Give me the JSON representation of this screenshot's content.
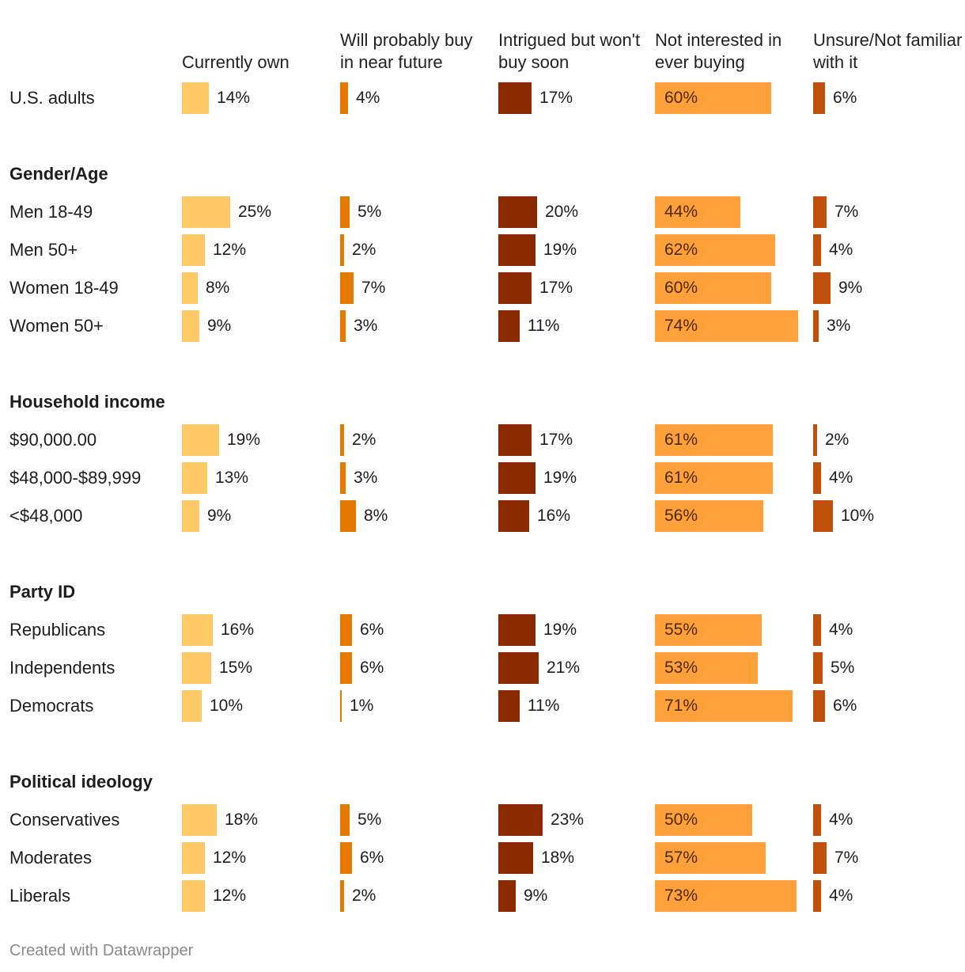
{
  "chart_data": {
    "type": "bar",
    "title": "",
    "columns": [
      {
        "label": "Currently own",
        "color": "#ffc966"
      },
      {
        "label": "Will probably buy in near future",
        "color": "#e67a00"
      },
      {
        "label": "Intrigued but won't buy soon",
        "color": "#8b2a00"
      },
      {
        "label": "Not interested in ever buying",
        "color": "#ffa03a"
      },
      {
        "label": "Unsure/Not familiar with it",
        "color": "#c0500a"
      }
    ],
    "rows": [
      {
        "kind": "data",
        "label": "U.S. adults",
        "values": [
          14,
          4,
          17,
          60,
          6
        ]
      },
      {
        "kind": "group",
        "label": "Gender/Age"
      },
      {
        "kind": "data",
        "label": "Men 18-49",
        "values": [
          25,
          5,
          20,
          44,
          7
        ]
      },
      {
        "kind": "data",
        "label": "Men 50+",
        "values": [
          12,
          2,
          19,
          62,
          4
        ]
      },
      {
        "kind": "data",
        "label": "Women 18-49",
        "values": [
          8,
          7,
          17,
          60,
          9
        ]
      },
      {
        "kind": "data",
        "label": "Women 50+",
        "values": [
          9,
          3,
          11,
          74,
          3
        ]
      },
      {
        "kind": "group",
        "label": "Household income"
      },
      {
        "kind": "data",
        "label": "$90,000.00",
        "values": [
          19,
          2,
          17,
          61,
          2
        ]
      },
      {
        "kind": "data",
        "label": "$48,000-$89,999",
        "values": [
          13,
          3,
          19,
          61,
          4
        ]
      },
      {
        "kind": "data",
        "label": "<$48,000",
        "values": [
          9,
          8,
          16,
          56,
          10
        ]
      },
      {
        "kind": "group",
        "label": "Party ID"
      },
      {
        "kind": "data",
        "label": "Republicans",
        "values": [
          16,
          6,
          19,
          55,
          4
        ]
      },
      {
        "kind": "data",
        "label": "Independents",
        "values": [
          15,
          6,
          21,
          53,
          5
        ]
      },
      {
        "kind": "data",
        "label": "Democrats",
        "values": [
          10,
          1,
          11,
          71,
          6
        ]
      },
      {
        "kind": "group",
        "label": "Political ideology"
      },
      {
        "kind": "data",
        "label": "Conservatives",
        "values": [
          18,
          5,
          23,
          50,
          4
        ]
      },
      {
        "kind": "data",
        "label": "Moderates",
        "values": [
          12,
          6,
          18,
          57,
          7
        ]
      },
      {
        "kind": "data",
        "label": "Liberals",
        "values": [
          12,
          2,
          9,
          73,
          4
        ]
      }
    ],
    "value_suffix": "%"
  },
  "footer": "Created with Datawrapper"
}
